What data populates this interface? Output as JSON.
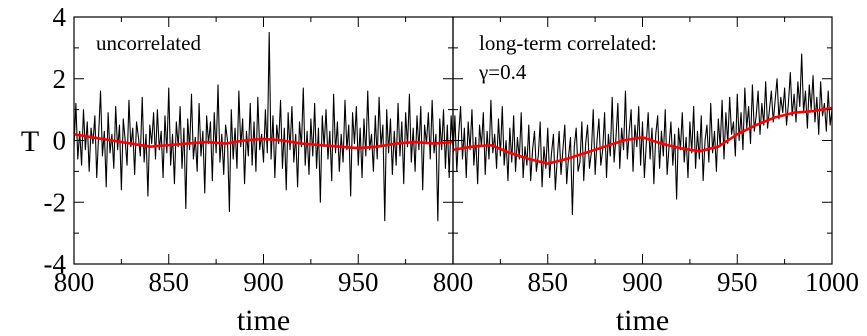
{
  "chart_data": {
    "type": "line",
    "ylabel": "T",
    "shared_y_axis": true,
    "ylim": [
      -4,
      4
    ],
    "yticks": [
      4,
      2,
      0,
      -2,
      -4
    ],
    "ytick_labels": [
      "4",
      "2",
      "0",
      "-2",
      "-4"
    ],
    "grid": false,
    "panels": [
      {
        "annotation_lines": [
          "uncorrelated"
        ],
        "xlabel": "time",
        "xlim": [
          800,
          1000
        ],
        "xticks": [
          800,
          850,
          900,
          950
        ],
        "xtick_labels": [
          "800",
          "850",
          "900",
          "950"
        ],
        "series": [
          {
            "color": "#000000",
            "x_start": 800,
            "x_step": 1,
            "values": [
              -0.2,
              1.2,
              -0.6,
              0.3,
              -0.8,
              1.0,
              -0.3,
              0.6,
              -1.0,
              0.4,
              -0.1,
              0.8,
              -1.2,
              0.2,
              1.6,
              -0.5,
              0.3,
              -1.5,
              0.9,
              -0.4,
              0.2,
              -0.9,
              1.1,
              -0.3,
              0.5,
              -1.6,
              0.7,
              0.0,
              -0.8,
              1.3,
              -0.2,
              0.4,
              -1.1,
              0.6,
              0.1,
              -0.5,
              1.4,
              -0.7,
              0.2,
              -1.8,
              0.5,
              -0.1,
              0.9,
              -0.6,
              1.0,
              -0.3,
              0.3,
              -1.2,
              0.8,
              -0.4,
              1.7,
              -0.8,
              0.2,
              -1.4,
              0.6,
              -0.2,
              1.1,
              -0.9,
              0.4,
              -2.2,
              0.7,
              -0.3,
              1.5,
              -0.6,
              0.1,
              -1.0,
              1.2,
              -0.5,
              0.3,
              -1.7,
              0.8,
              -0.1,
              0.6,
              -1.3,
              0.9,
              -0.4,
              1.8,
              -0.7,
              0.2,
              -1.1,
              0.5,
              0.0,
              -2.3,
              1.0,
              -0.6,
              0.4,
              -0.9,
              1.6,
              -0.2,
              0.7,
              -1.4,
              0.3,
              -0.5,
              1.2,
              -0.8,
              0.6,
              -1.0,
              1.4,
              -0.3,
              0.2,
              -0.7,
              1.0,
              -0.4,
              3.5,
              -0.6,
              0.8,
              -1.2,
              0.5,
              -0.1,
              1.3,
              -0.9,
              0.4,
              -1.6,
              0.9,
              -0.3,
              1.1,
              -0.7,
              0.2,
              -1.5,
              0.6,
              -0.2,
              1.7,
              -0.8,
              0.3,
              -1.1,
              0.7,
              -0.5,
              1.2,
              -0.9,
              0.4,
              -2.0,
              0.8,
              -0.2,
              1.0,
              -0.6,
              0.3,
              -1.3,
              1.5,
              -0.4,
              0.6,
              -1.0,
              0.2,
              -0.7,
              1.3,
              -0.3,
              0.5,
              -1.8,
              0.9,
              -0.1,
              1.1,
              -0.8,
              0.4,
              -1.2,
              0.7,
              -0.5,
              1.6,
              -0.3,
              0.2,
              -1.0,
              0.8,
              -0.6,
              1.4,
              -0.2,
              0.5,
              -2.6,
              1.0,
              -0.4,
              0.7,
              -1.1,
              0.3,
              -0.8,
              1.2,
              -0.5,
              0.6,
              -1.4,
              0.9,
              -0.2,
              1.5,
              -0.7,
              0.4,
              -1.0,
              0.8,
              -0.3,
              1.1,
              -1.6,
              0.5,
              -0.1,
              0.9,
              -0.6,
              1.3,
              -0.4,
              0.2,
              -2.6,
              0.7,
              -0.3,
              1.0,
              -0.9,
              0.5,
              -1.2,
              0.8,
              -0.2,
              1.4,
              -0.5,
              0.3,
              -1.0,
              0.6,
              -0.4
            ]
          },
          {
            "color": "#ff0000",
            "x": [
              800,
              810,
              820,
              830,
              840,
              850,
              860,
              870,
              880,
              890,
              900,
              910,
              920,
              930,
              940,
              950,
              960,
              970,
              980,
              990,
              1000
            ],
            "values": [
              0.2,
              0.1,
              0.0,
              -0.1,
              -0.2,
              -0.15,
              -0.1,
              -0.05,
              -0.1,
              0.0,
              0.05,
              0.0,
              -0.1,
              -0.15,
              -0.2,
              -0.25,
              -0.2,
              -0.1,
              -0.05,
              -0.1,
              -0.05
            ]
          }
        ]
      },
      {
        "annotation_lines": [
          "long-term correlated:",
          "γ=0.4"
        ],
        "xlabel": "time",
        "xlim": [
          800,
          1000
        ],
        "xticks": [
          800,
          850,
          900,
          950,
          1000
        ],
        "xtick_labels": [
          "800",
          "850",
          "900",
          "950",
          "1000"
        ],
        "series": [
          {
            "color": "#000000",
            "x_start": 800,
            "x_step": 1,
            "values": [
              -0.5,
              0.8,
              -1.0,
              0.2,
              1.1,
              -0.6,
              0.4,
              -1.2,
              0.6,
              -0.3,
              1.0,
              -0.8,
              0.1,
              -1.4,
              0.5,
              -0.2,
              0.9,
              -1.1,
              0.3,
              -0.6,
              1.3,
              -0.4,
              0.2,
              -0.9,
              0.7,
              -0.5,
              1.1,
              -0.8,
              0.0,
              -1.3,
              0.4,
              -0.7,
              0.8,
              -1.0,
              0.1,
              -0.6,
              0.9,
              -1.2,
              -0.2,
              -0.8,
              0.5,
              -1.3,
              -0.3,
              0.3,
              -1.0,
              -0.5,
              0.6,
              -1.5,
              -0.2,
              -0.9,
              0.4,
              -1.2,
              -0.4,
              0.2,
              -1.6,
              -0.6,
              0.3,
              -1.1,
              -0.3,
              0.5,
              -1.4,
              -0.5,
              0.1,
              -2.4,
              -0.2,
              0.4,
              -1.0,
              -0.7,
              0.6,
              -1.3,
              -0.1,
              0.5,
              -0.9,
              -0.4,
              1.0,
              -1.1,
              0.0,
              0.7,
              -0.8,
              -0.3,
              0.9,
              -1.2,
              0.2,
              -0.5,
              1.4,
              -0.7,
              0.1,
              1.2,
              -0.9,
              0.4,
              -0.3,
              1.6,
              -0.6,
              0.3,
              1.0,
              -1.0,
              0.5,
              -0.2,
              1.1,
              -0.8,
              0.6,
              -1.2,
              -0.1,
              0.9,
              -0.6,
              0.4,
              -1.4,
              0.2,
              0.8,
              -0.9,
              0.3,
              -0.5,
              1.0,
              -1.1,
              -0.2,
              0.6,
              -0.8,
              0.2,
              -1.9,
              0.4,
              -0.3,
              0.9,
              -0.7,
              0.1,
              -1.2,
              0.6,
              -0.4,
              1.1,
              -0.9,
              0.3,
              -0.6,
              0.8,
              -1.3,
              0.0,
              0.5,
              -0.7,
              1.2,
              -0.4,
              0.3,
              -1.0,
              0.7,
              -0.2,
              1.3,
              -0.6,
              0.9,
              -0.1,
              1.4,
              0.2,
              0.6,
              -0.5,
              1.5,
              0.0,
              0.9,
              -0.3,
              1.7,
              0.4,
              1.1,
              -0.1,
              1.8,
              0.3,
              0.8,
              1.6,
              0.2,
              1.2,
              0.5,
              1.9,
              0.4,
              1.0,
              1.6,
              0.6,
              1.3,
              2.0,
              0.7,
              1.4,
              0.9,
              1.7,
              0.5,
              1.2,
              2.2,
              0.8,
              1.5,
              0.6,
              1.9,
              1.1,
              2.8,
              0.9,
              1.6,
              0.4,
              1.8,
              1.0,
              2.1,
              0.6,
              1.4,
              0.2,
              1.9,
              0.8,
              1.2,
              0.3,
              1.6,
              0.5,
              1.0,
              0.2
            ]
          },
          {
            "color": "#ff0000",
            "x": [
              800,
              810,
              820,
              830,
              840,
              850,
              860,
              870,
              880,
              890,
              900,
              910,
              920,
              930,
              940,
              950,
              960,
              970,
              980,
              990,
              1000
            ],
            "values": [
              -0.3,
              -0.2,
              -0.15,
              -0.4,
              -0.6,
              -0.75,
              -0.6,
              -0.4,
              -0.2,
              0.0,
              0.1,
              -0.1,
              -0.25,
              -0.35,
              -0.2,
              0.2,
              0.5,
              0.75,
              0.9,
              0.95,
              1.05
            ]
          }
        ]
      }
    ]
  }
}
